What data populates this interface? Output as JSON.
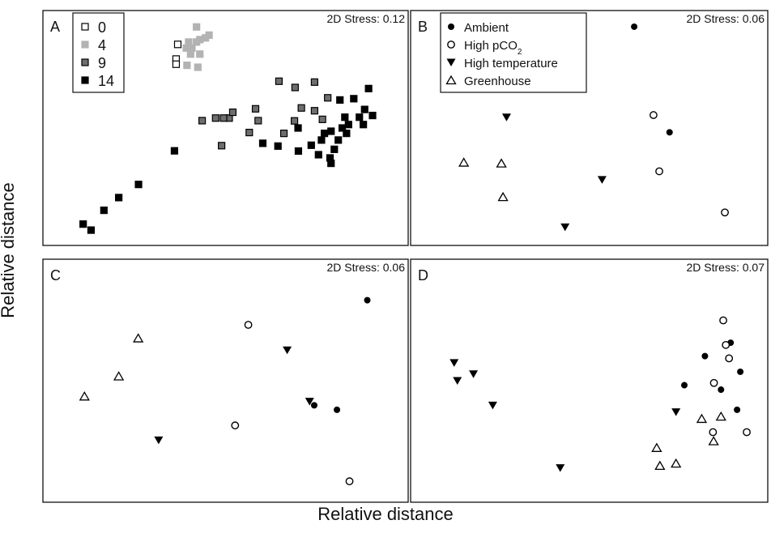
{
  "figure": {
    "xlabel": "Relative distance",
    "ylabel": "Relative distance"
  },
  "legend_sampling": [
    {
      "label": "0",
      "key": "d0"
    },
    {
      "label": "4",
      "key": "d4"
    },
    {
      "label": "9",
      "key": "d9"
    },
    {
      "label": "14",
      "key": "d14"
    }
  ],
  "legend_treatment": [
    {
      "label": "Ambient",
      "key": "amb"
    },
    {
      "label": "High pCO",
      "sub": "2",
      "key": "co2"
    },
    {
      "label": "High temperature",
      "key": "temp"
    },
    {
      "label": "Greenhouse",
      "key": "gh"
    }
  ],
  "colors": {
    "d0": "#ffffff",
    "d4": "#b3b3b3",
    "d9": "#6e6e6e",
    "d14": "#000000"
  },
  "chart_data": [
    {
      "panel": "A",
      "type": "scatter",
      "stress": "2D Stress: 0.12",
      "xlim": [
        0,
        100
      ],
      "ylim": [
        0,
        100
      ],
      "legend_position": "top-left",
      "series": [
        {
          "key": "d0",
          "points": [
            [
              35.5,
              88.8
            ],
            [
              35.0,
              82.0
            ],
            [
              35.0,
              79.6
            ]
          ]
        },
        {
          "key": "d4",
          "points": [
            [
              41.2,
              96.9
            ],
            [
              45.0,
              93.1
            ],
            [
              42.2,
              91.0
            ],
            [
              43.9,
              91.8
            ],
            [
              38.8,
              89.9
            ],
            [
              41.2,
              89.9
            ],
            [
              38.1,
              87.1
            ],
            [
              39.8,
              87.1
            ],
            [
              39.4,
              84.3
            ],
            [
              42.2,
              84.3
            ],
            [
              38.3,
              79.1
            ],
            [
              41.6,
              78.2
            ]
          ]
        },
        {
          "key": "d9",
          "points": [
            [
              66.2,
              71.7
            ],
            [
              77.0,
              71.3
            ],
            [
              71.1,
              68.8
            ],
            [
              81.0,
              64.0
            ],
            [
              59.1,
              58.9
            ],
            [
              77.0,
              58.0
            ],
            [
              73.0,
              59.3
            ],
            [
              51.1,
              54.6
            ],
            [
              52.2,
              57.3
            ],
            [
              49.4,
              54.6
            ],
            [
              47.0,
              54.6
            ],
            [
              59.9,
              53.4
            ],
            [
              42.9,
              53.4
            ],
            [
              70.9,
              53.3
            ],
            [
              79.4,
              54.0
            ],
            [
              57.2,
              47.9
            ],
            [
              67.7,
              47.5
            ],
            [
              48.8,
              41.8
            ]
          ]
        },
        {
          "key": "d14",
          "points": [
            [
              93.4,
              68.3
            ],
            [
              88.9,
              63.6
            ],
            [
              84.7,
              63.0
            ],
            [
              92.2,
              58.6
            ],
            [
              86.2,
              55.0
            ],
            [
              90.6,
              55.0
            ],
            [
              94.6,
              55.8
            ],
            [
              87.3,
              51.6
            ],
            [
              91.8,
              51.6
            ],
            [
              85.4,
              50.0
            ],
            [
              72.0,
              50.0
            ],
            [
              82.0,
              48.5
            ],
            [
              80.0,
              47.5
            ],
            [
              86.7,
              47.5
            ],
            [
              79.1,
              44.4
            ],
            [
              84.2,
              44.4
            ],
            [
              76.0,
              42.0
            ],
            [
              61.3,
              42.9
            ],
            [
              65.9,
              41.6
            ],
            [
              83.0,
              40.1
            ],
            [
              72.1,
              39.3
            ],
            [
              78.2,
              37.6
            ],
            [
              81.7,
              36.1
            ],
            [
              82.0,
              33.6
            ],
            [
              34.5,
              39.4
            ],
            [
              23.6,
              23.8
            ],
            [
              17.6,
              17.7
            ],
            [
              13.1,
              11.8
            ],
            [
              6.8,
              5.4
            ],
            [
              9.2,
              2.6
            ]
          ]
        }
      ]
    },
    {
      "panel": "B",
      "type": "scatter",
      "stress": "2D Stress: 0.06",
      "xlim": [
        0,
        100
      ],
      "ylim": [
        0,
        100
      ],
      "legend_position": "top-left",
      "series": [
        {
          "key": "amb",
          "points": [
            [
              64.0,
              97.0
            ],
            [
              75.0,
              48.0
            ]
          ]
        },
        {
          "key": "co2",
          "points": [
            [
              70.0,
              56.0
            ],
            [
              71.8,
              29.9
            ],
            [
              92.2,
              10.8
            ]
          ]
        },
        {
          "key": "temp",
          "points": [
            [
              24.3,
              55.0
            ],
            [
              54.0,
              26.0
            ],
            [
              42.5,
              4.0
            ]
          ]
        },
        {
          "key": "gh",
          "points": [
            [
              11.0,
              34.0
            ],
            [
              22.7,
              33.6
            ],
            [
              23.2,
              18.0
            ]
          ]
        }
      ]
    },
    {
      "panel": "C",
      "type": "scatter",
      "stress": "2D Stress: 0.06",
      "xlim": [
        0,
        100
      ],
      "ylim": [
        0,
        100
      ],
      "legend_position": "none",
      "series": [
        {
          "key": "amb",
          "points": [
            [
              93.0,
              86.0
            ],
            [
              76.9,
              39.0
            ],
            [
              83.8,
              37.0
            ]
          ]
        },
        {
          "key": "co2",
          "points": [
            [
              56.9,
              75.0
            ],
            [
              52.9,
              30.0
            ],
            [
              87.6,
              5.0
            ]
          ]
        },
        {
          "key": "temp",
          "points": [
            [
              68.7,
              63.7
            ],
            [
              75.5,
              40.7
            ],
            [
              29.7,
              23.4
            ]
          ]
        },
        {
          "key": "gh",
          "points": [
            [
              23.5,
              69.0
            ],
            [
              17.6,
              52.0
            ],
            [
              7.2,
              43.0
            ]
          ]
        }
      ]
    },
    {
      "panel": "D",
      "type": "scatter",
      "stress": "2D Stress: 0.07",
      "xlim": [
        0,
        100
      ],
      "ylim": [
        0,
        100
      ],
      "legend_position": "none",
      "series": [
        {
          "key": "amb",
          "points": [
            [
              94.0,
              67.0
            ],
            [
              86.0,
              61.0
            ],
            [
              97.0,
              54.0
            ],
            [
              79.6,
              48.0
            ],
            [
              91.0,
              46.0
            ],
            [
              96.0,
              37.0
            ]
          ]
        },
        {
          "key": "co2",
          "points": [
            [
              91.7,
              77.0
            ],
            [
              92.5,
              66.0
            ],
            [
              93.5,
              60.0
            ],
            [
              88.8,
              49.0
            ],
            [
              88.5,
              27.0
            ],
            [
              99.0,
              27.0
            ]
          ]
        },
        {
          "key": "temp",
          "points": [
            [
              8.0,
              58.0
            ],
            [
              14.0,
              53.0
            ],
            [
              9.0,
              50.0
            ],
            [
              20.0,
              39.0
            ],
            [
              77.0,
              36.0
            ],
            [
              41.0,
              11.0
            ]
          ]
        },
        {
          "key": "gh",
          "points": [
            [
              85.0,
              33.0
            ],
            [
              91.0,
              34.0
            ],
            [
              88.7,
              23.0
            ],
            [
              71.0,
              20.0
            ],
            [
              72.0,
              12.0
            ],
            [
              77.0,
              13.0
            ]
          ]
        }
      ]
    }
  ]
}
